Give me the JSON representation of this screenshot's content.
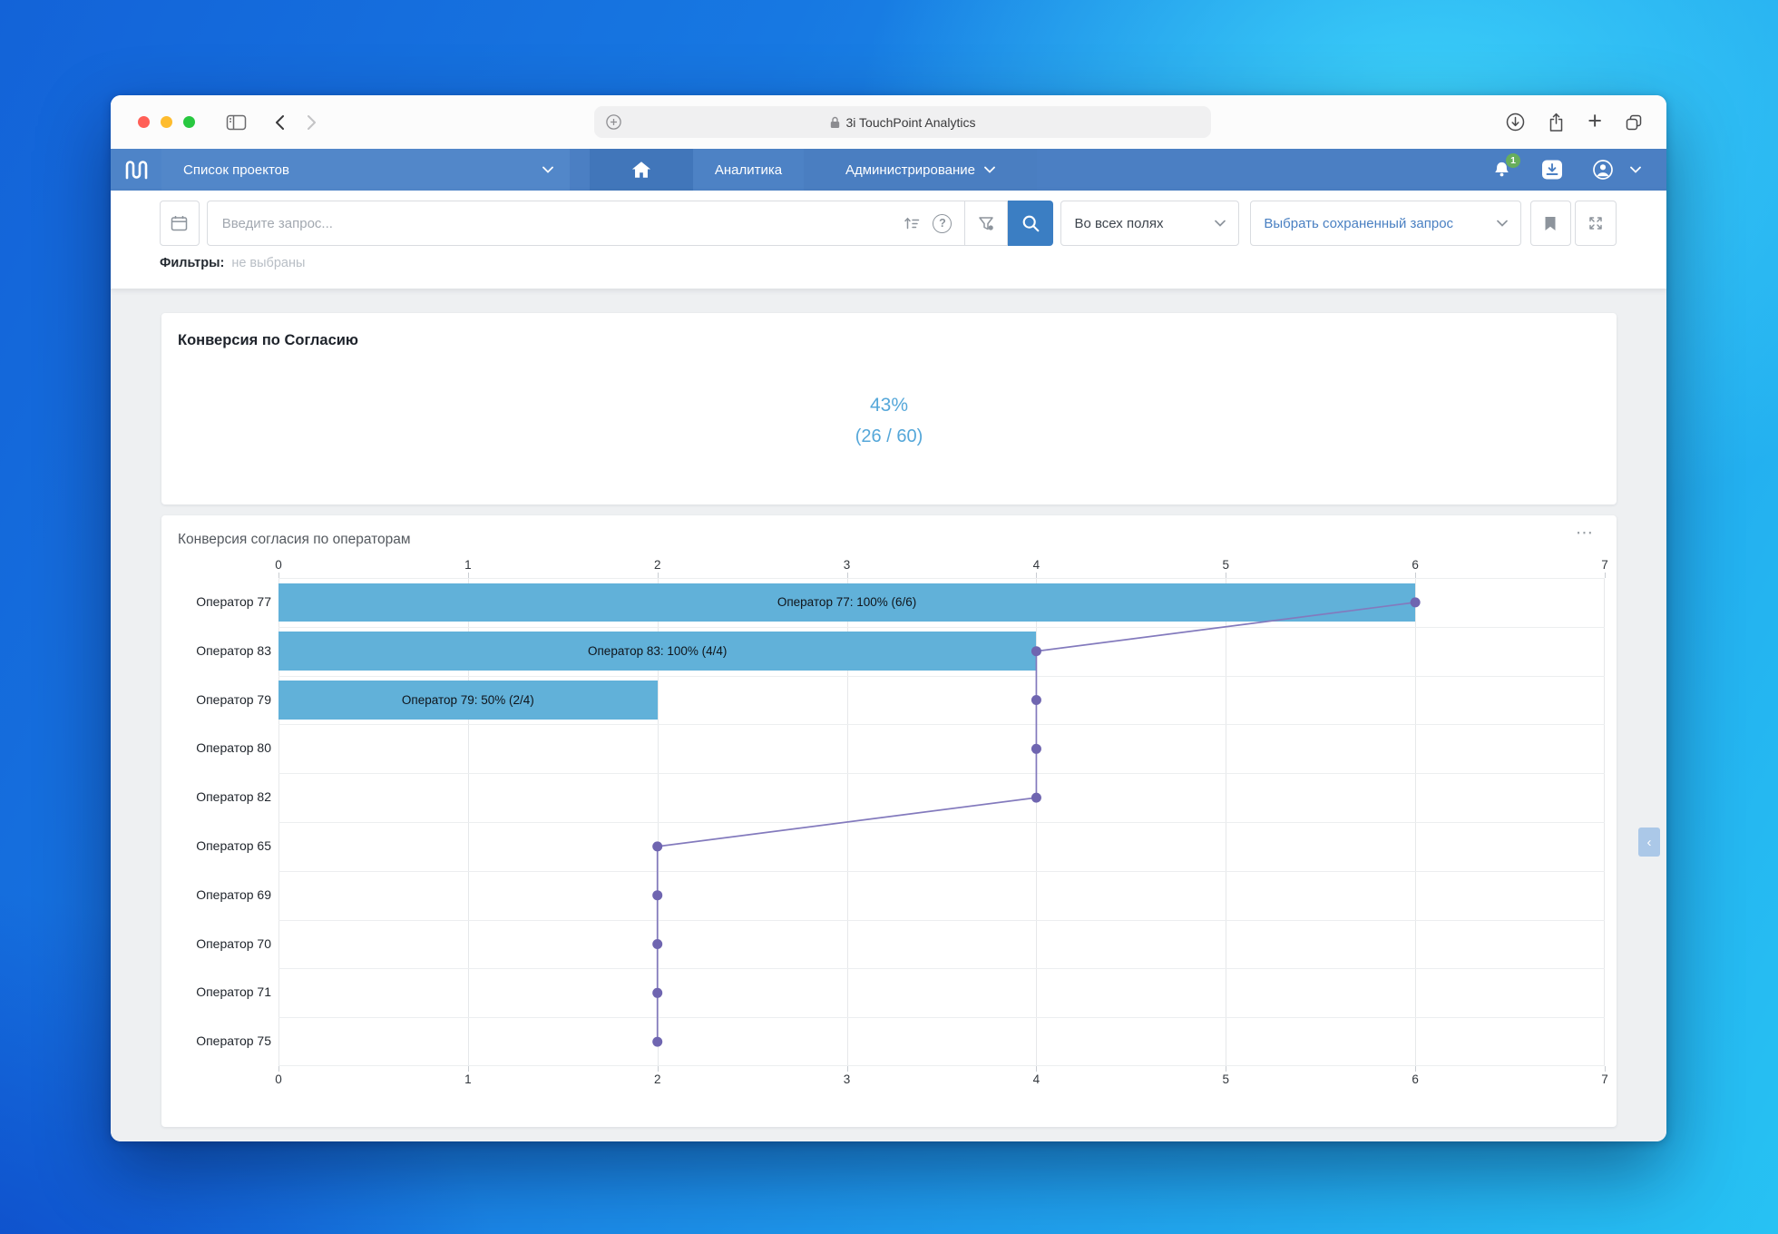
{
  "browser": {
    "tab_title": "3i TouchPoint Analytics",
    "traffic_lights": [
      "#ff5f57",
      "#febc2e",
      "#28c840"
    ]
  },
  "navbar": {
    "project_select": {
      "label": "Список проектов"
    },
    "menu": [
      {
        "label": "Аналитика"
      },
      {
        "label": "Администрирование"
      }
    ],
    "notification_badge": "1"
  },
  "toolbar": {
    "search_placeholder": "Введите запрос...",
    "scope_select": "Во всех полях",
    "saved_query_select": "Выбрать сохраненный запрос"
  },
  "filters": {
    "label": "Фильтры:",
    "value": "не выбраны"
  },
  "cards": {
    "consent_conversion": {
      "title": "Конверсия по Согласию",
      "percent": "43%",
      "fraction": "(26 / 60)"
    }
  },
  "icons": {
    "help_question": "?",
    "new_tab_plus": "+",
    "card_menu_dots": "⋯",
    "panel_collapse": "‹"
  },
  "colors": {
    "navbar_blue": "#4b7fc3",
    "search_button_blue": "#3b7ec3",
    "percent_blue": "#55a7d9",
    "badge_green": "#67ae5c",
    "bar_blue": "#61b1d9",
    "line_purple": "#6f65b0"
  },
  "chart_data": {
    "type": "bar",
    "orientation": "horizontal",
    "title": "Конверсия согласия по операторам",
    "categories": [
      "Оператор 77",
      "Оператор 83",
      "Оператор 79",
      "Оператор 80",
      "Оператор 82",
      "Оператор 65",
      "Оператор 69",
      "Оператор 70",
      "Оператор 71",
      "Оператор 75"
    ],
    "series": [
      {
        "type": "bar",
        "color": "#61b1d9",
        "values": [
          6,
          4,
          2,
          0,
          0,
          0,
          0,
          0,
          0,
          0
        ],
        "labels": [
          "Оператор 77: 100% (6/6)",
          "Оператор 83: 100% (4/4)",
          "Оператор 79: 50% (2/4)",
          "",
          "",
          "",
          "",
          "",
          "",
          ""
        ]
      },
      {
        "type": "line",
        "color": "#6f65b0",
        "line_color": "#837abd",
        "values": [
          6,
          4,
          4,
          4,
          4,
          2,
          2,
          2,
          2,
          2
        ]
      }
    ],
    "xlim": [
      0,
      7
    ],
    "xticks": [
      0,
      1,
      2,
      3,
      4,
      5,
      6,
      7
    ],
    "x_axis_position": "top_and_bottom",
    "grid": true,
    "legend": "none"
  }
}
